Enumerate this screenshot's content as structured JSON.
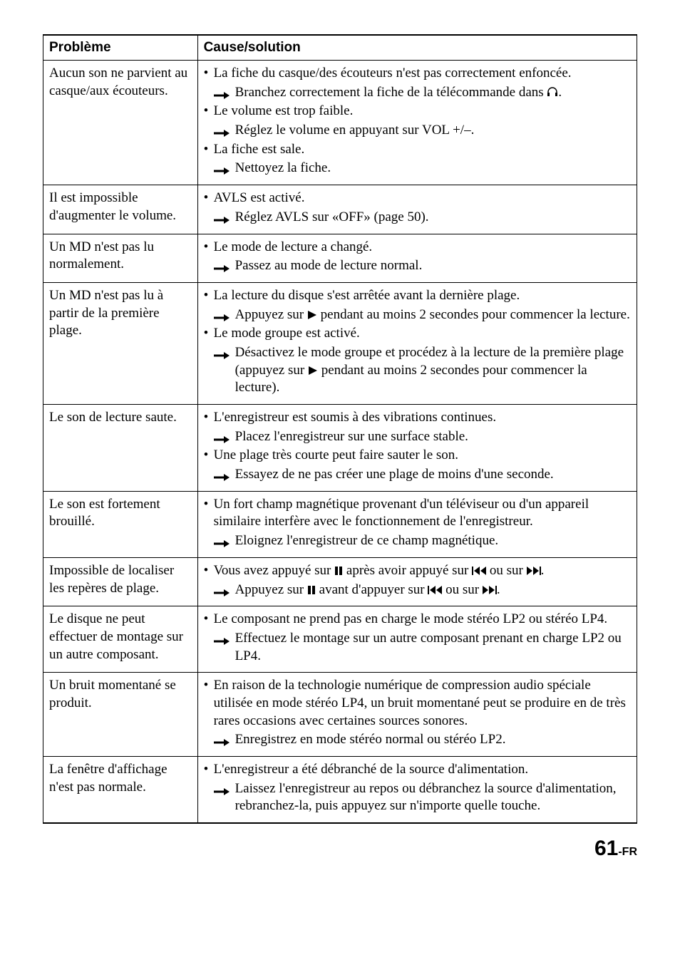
{
  "headers": {
    "problem": "Problème",
    "cause": "Cause/solution"
  },
  "icons": {
    "arrow": "<svg class='icon' width='22' height='12' viewBox='0 0 22 12'><line x1='0' y1='6' x2='16' y2='6' stroke='#000' stroke-width='3'/><polygon points='14,1 22,6 14,11' fill='#000'/></svg>",
    "headphones": "<svg class='icon' width='16' height='16' viewBox='0 0 16 16'><path d='M2 10 V8 a6 6 0 0 1 12 0 v2' fill='none' stroke='#000' stroke-width='1.5'/><rect x='1' y='9' width='3' height='5' fill='#000'/><rect x='12' y='9' width='3' height='5' fill='#000'/></svg>",
    "play": "<svg class='icon' width='14' height='14' viewBox='0 0 14 14'><polygon points='1,1 13,7 1,13' fill='#000'/></svg>",
    "pause": "<svg class='icon' width='12' height='14' viewBox='0 0 12 14'><rect x='1' y='1' width='4' height='12' fill='#000'/><rect x='7' y='1' width='4' height='12' fill='#000'/></svg>",
    "prev": "<svg class='icon' width='20' height='14' viewBox='0 0 20 14'><rect x='0' y='1' width='2' height='12' fill='#000'/><polygon points='11,1 3,7 11,13' fill='#000'/><polygon points='20,1 12,7 20,13' fill='#000'/></svg>",
    "next": "<svg class='icon' width='20' height='14' viewBox='0 0 20 14'><polygon points='0,1 8,7 0,13' fill='#000'/><polygon points='9,1 17,7 9,13' fill='#000'/><rect x='18' y='1' width='2' height='12' fill='#000'/></svg>"
  },
  "rows": [
    {
      "problem": "Aucun son ne parvient au casque/aux écouteurs.",
      "causes": [
        {
          "text": "La fiche du casque/des écouteurs n'est pas correctement enfoncée.",
          "actions": [
            {
              "pre": "Branchez correctement la fiche de la télécommande dans ",
              "icon": "headphones",
              "post": "."
            }
          ]
        },
        {
          "text": "Le volume est trop faible.",
          "actions": [
            {
              "pre": "Réglez le volume en appuyant sur VOL +/–."
            }
          ]
        },
        {
          "text": "La fiche est sale.",
          "actions": [
            {
              "pre": "Nettoyez la fiche."
            }
          ]
        }
      ]
    },
    {
      "problem": "Il est impossible d'augmenter le volume.",
      "causes": [
        {
          "text": "AVLS est activé.",
          "actions": [
            {
              "pre": "Réglez AVLS sur «OFF» (page 50)."
            }
          ]
        }
      ]
    },
    {
      "problem": "Un MD n'est pas lu normalement.",
      "causes": [
        {
          "text": "Le mode de lecture a changé.",
          "actions": [
            {
              "pre": "Passez au mode de lecture normal."
            }
          ]
        }
      ]
    },
    {
      "problem": "Un MD n'est pas lu à partir de la première plage.",
      "causes": [
        {
          "text": "La lecture du disque s'est arrêtée avant la dernière plage.",
          "actions": [
            {
              "pre": "Appuyez sur ",
              "icon": "play",
              "post": " pendant au moins 2 secondes pour commencer la lecture."
            }
          ]
        },
        {
          "text": "Le mode groupe est activé.",
          "actions": [
            {
              "pre": "Désactivez le mode groupe et procédez à la lecture de la première plage (appuyez sur ",
              "icon": "play",
              "post": " pendant au moins 2 secondes pour commencer la lecture)."
            }
          ]
        }
      ]
    },
    {
      "problem": "Le son de lecture saute.",
      "causes": [
        {
          "text": "L'enregistreur est soumis à des vibrations continues.",
          "actions": [
            {
              "pre": "Placez l'enregistreur sur une surface stable."
            }
          ]
        },
        {
          "text": "Une plage très courte peut faire sauter le son.",
          "actions": [
            {
              "pre": "Essayez de ne pas créer une plage de moins d'une seconde."
            }
          ]
        }
      ]
    },
    {
      "problem": "Le son est fortement brouillé.",
      "causes": [
        {
          "text": "Un fort champ magnétique provenant d'un téléviseur ou d'un appareil similaire interfère avec le fonctionnement de l'enregistreur.",
          "actions": [
            {
              "pre": "Eloignez l'enregistreur de ce champ magnétique."
            }
          ]
        }
      ]
    },
    {
      "problem": "Impossible de localiser les repères de plage.",
      "causes": [
        {
          "segments": [
            {
              "t": "Vous avez appuyé sur "
            },
            {
              "icon": "pause"
            },
            {
              "t": " après avoir appuyé sur "
            },
            {
              "icon": "prev"
            },
            {
              "t": " ou sur "
            },
            {
              "icon": "next"
            },
            {
              "t": "."
            }
          ],
          "actions": [
            {
              "segments": [
                {
                  "t": "Appuyez sur "
                },
                {
                  "icon": "pause"
                },
                {
                  "t": " avant d'appuyer sur "
                },
                {
                  "icon": "prev"
                },
                {
                  "t": " ou sur "
                },
                {
                  "icon": "next"
                },
                {
                  "t": "."
                }
              ]
            }
          ]
        }
      ]
    },
    {
      "problem": "Le disque ne peut effectuer de montage sur un autre composant.",
      "causes": [
        {
          "text": "Le composant ne prend pas en charge le mode stéréo LP2 ou stéréo LP4.",
          "actions": [
            {
              "pre": "Effectuez le montage sur un autre composant prenant en charge LP2 ou LP4."
            }
          ]
        }
      ]
    },
    {
      "problem": "Un bruit momentané se produit.",
      "causes": [
        {
          "text": "En raison de la technologie numérique de compression audio spéciale utilisée en mode stéréo LP4, un bruit momentané peut se produire en de très rares occasions avec certaines sources sonores.",
          "actions": [
            {
              "pre": "Enregistrez en mode stéréo normal ou stéréo LP2."
            }
          ]
        }
      ]
    },
    {
      "problem": "La fenêtre d'affichage n'est pas normale.",
      "causes": [
        {
          "text": "L'enregistreur a été débranché de la source d'alimentation.",
          "actions": [
            {
              "pre": "Laissez l'enregistreur au repos ou débranchez la source d'alimentation, rebranchez-la, puis appuyez sur n'importe quelle touche."
            }
          ]
        }
      ]
    }
  ],
  "footer": {
    "page": "61",
    "suffix": "-FR"
  }
}
